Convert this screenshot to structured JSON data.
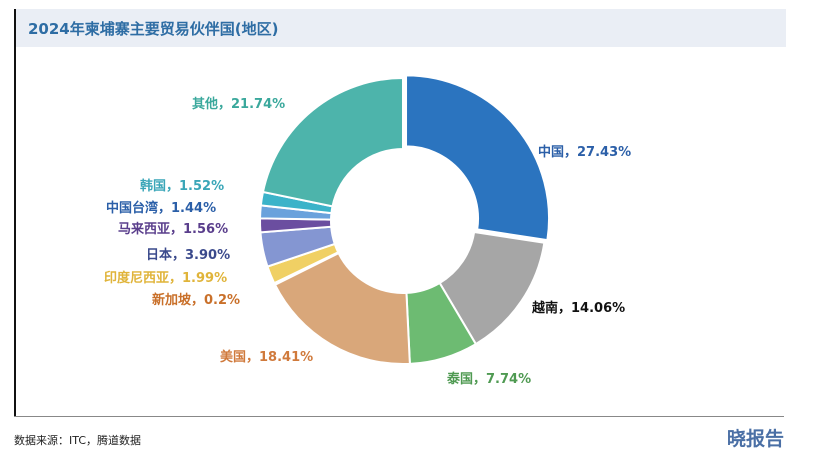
{
  "chart_data": {
    "type": "pie",
    "donut": true,
    "title": "2024年柬埔寨主要贸易伙伴国(地区)",
    "slices": [
      {
        "label": "中国",
        "value": 27.43,
        "display": "中国，27.43%",
        "color": "#2b74bf",
        "text_color": "#2b5fa8"
      },
      {
        "label": "越南",
        "value": 14.06,
        "display": "越南，14.06%",
        "color": "#a6a6a6",
        "text_color": "#111111"
      },
      {
        "label": "泰国",
        "value": 7.74,
        "display": "泰国，7.74%",
        "color": "#6dbb72",
        "text_color": "#4f9a52"
      },
      {
        "label": "美国",
        "value": 18.41,
        "display": "美国，18.41%",
        "color": "#d9a77a",
        "text_color": "#d07a3c"
      },
      {
        "label": "新加坡",
        "value": 0.2,
        "display": "新加坡，0.2%",
        "color": "#d9a77a",
        "text_color": "#c9702a"
      },
      {
        "label": "印度尼西亚",
        "value": 1.99,
        "display": "印度尼西亚，1.99%",
        "color": "#f0d064",
        "text_color": "#e0b43a"
      },
      {
        "label": "日本",
        "value": 3.9,
        "display": "日本，3.90%",
        "color": "#8496d2",
        "text_color": "#3b4a8c"
      },
      {
        "label": "马来西亚",
        "value": 1.56,
        "display": "马来西亚，1.56%",
        "color": "#6b4ea0",
        "text_color": "#5a3e8c"
      },
      {
        "label": "中国台湾",
        "value": 1.44,
        "display": "中国台湾，1.44%",
        "color": "#6aa2dc",
        "text_color": "#2b5fa8"
      },
      {
        "label": "韩国",
        "value": 1.52,
        "display": "韩国，1.52%",
        "color": "#3bb3c9",
        "text_color": "#3aa6b8"
      },
      {
        "label": "其他",
        "value": 21.74,
        "display": "其他，21.74%",
        "color": "#4db4ab",
        "text_color": "#3aa89c"
      }
    ]
  },
  "footer": {
    "source": "数据来源：ITC，腾道数据",
    "brand": "晓报告"
  }
}
